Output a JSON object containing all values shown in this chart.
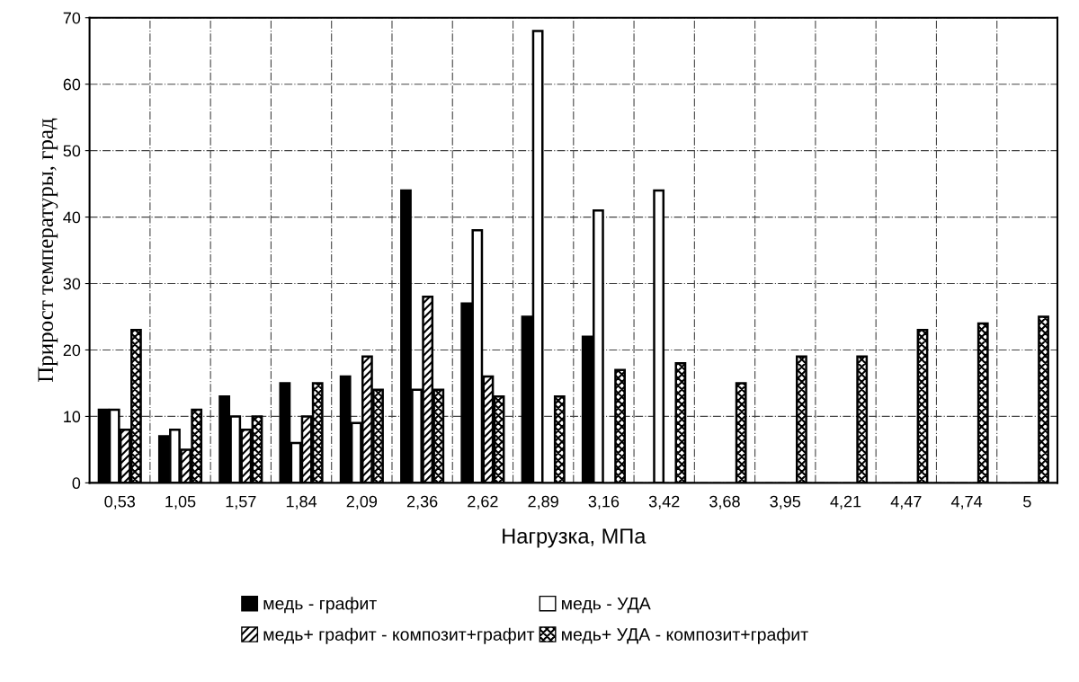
{
  "chart_data": {
    "type": "bar",
    "xlabel": "Нагрузка, МПа",
    "ylabel": "Прирост температуры, град",
    "categories": [
      "0,53",
      "1,05",
      "1,57",
      "1,84",
      "2,09",
      "2,36",
      "2,62",
      "2,89",
      "3,16",
      "3,42",
      "3,68",
      "3,95",
      "4,21",
      "4,47",
      "4,74",
      "5"
    ],
    "series": [
      {
        "name": "медь - графит",
        "color": "#000000",
        "values": [
          11,
          7,
          13,
          15,
          16,
          44,
          27,
          25,
          22,
          null,
          null,
          null,
          null,
          null,
          null,
          null
        ]
      },
      {
        "name": "медь - УДА",
        "color": "#ffffff",
        "values": [
          11,
          8,
          10,
          6,
          9,
          14,
          38,
          68,
          41,
          44,
          null,
          null,
          null,
          null,
          null,
          null
        ]
      },
      {
        "name": "медь+ графит - композит+графит",
        "color": "#000000",
        "values": [
          8,
          5,
          8,
          10,
          19,
          28,
          16,
          null,
          null,
          null,
          null,
          null,
          null,
          null,
          null,
          null
        ]
      },
      {
        "name": "медь+ УДА - композит+графит",
        "color": "#000000",
        "values": [
          23,
          11,
          10,
          15,
          14,
          14,
          13,
          13,
          17,
          18,
          15,
          19,
          19,
          23,
          24,
          25
        ]
      }
    ],
    "ylim": [
      0,
      70
    ],
    "yticks": [
      0,
      10,
      20,
      30,
      40,
      50,
      60,
      70
    ],
    "grid": true,
    "legend": "bottom"
  }
}
